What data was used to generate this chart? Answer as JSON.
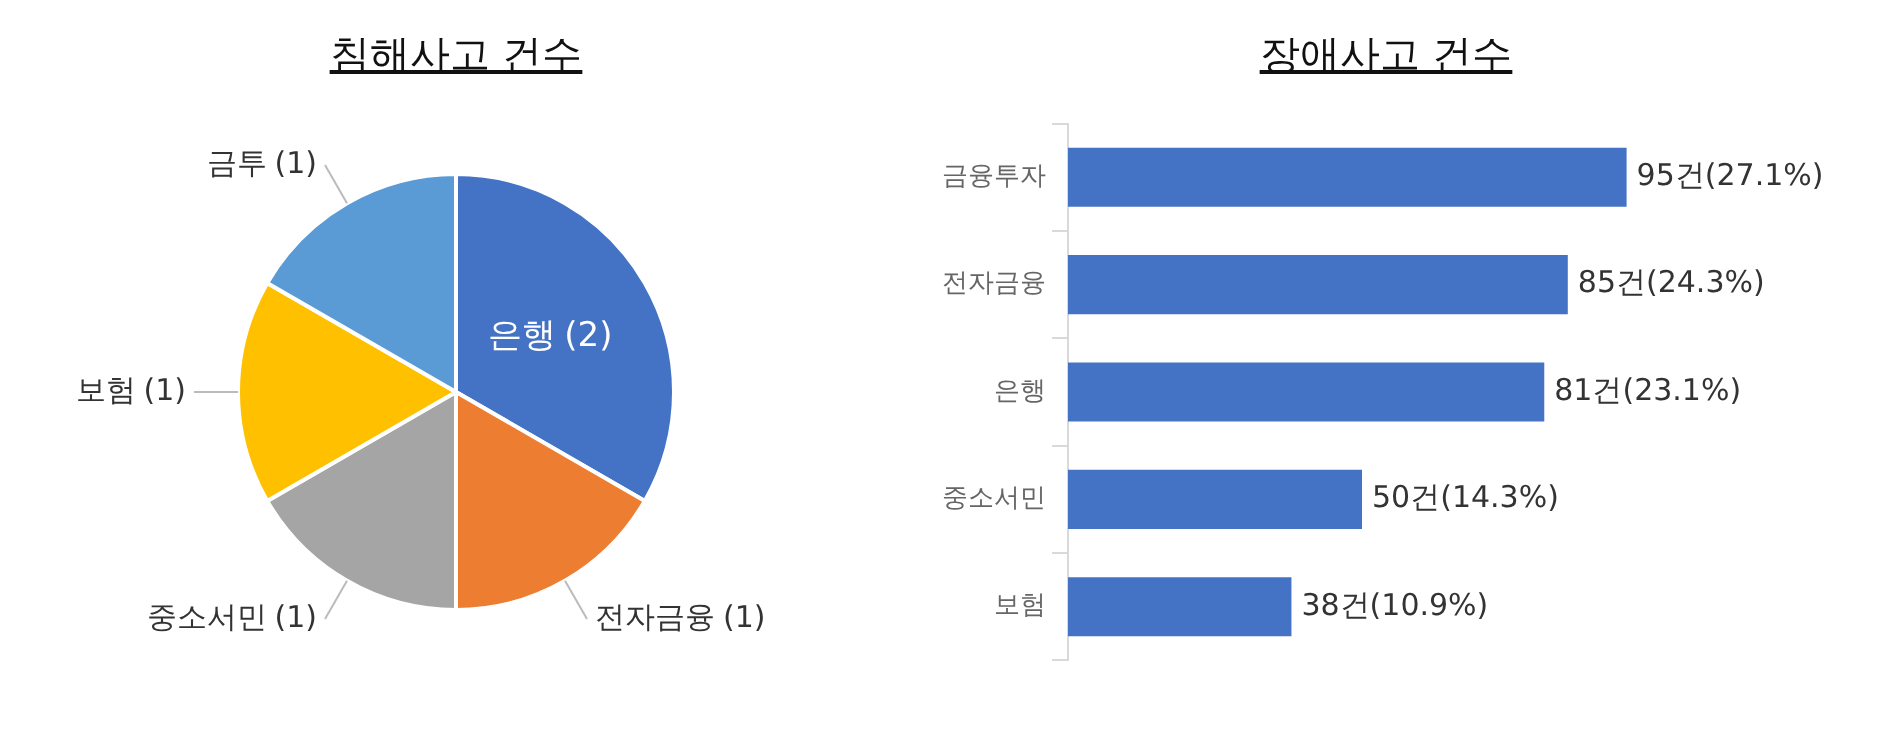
{
  "chart_data": [
    {
      "type": "pie",
      "title": "침해사고 건수",
      "categories": [
        "은행",
        "전자금융",
        "중소서민",
        "보험",
        "금투"
      ],
      "values": [
        2,
        1,
        1,
        1,
        1
      ],
      "colors": [
        "#4472c4",
        "#ed7d31",
        "#a5a5a5",
        "#ffc000",
        "#5b9bd5"
      ],
      "value_labels": [
        "(2)",
        "(1)",
        "(1)",
        "(1)",
        "(1)"
      ]
    },
    {
      "type": "bar",
      "title": "장애사고 건수",
      "orientation": "horizontal",
      "categories": [
        "금융투자",
        "전자금융",
        "은행",
        "중소서민",
        "보험"
      ],
      "values": [
        95,
        85,
        81,
        50,
        38
      ],
      "color": "#4472c4",
      "value_labels": [
        "95건(27.1%)",
        "85건(24.3%)",
        "81건(23.1%)",
        "50건(14.3%)",
        "38건(10.9%)"
      ]
    }
  ]
}
